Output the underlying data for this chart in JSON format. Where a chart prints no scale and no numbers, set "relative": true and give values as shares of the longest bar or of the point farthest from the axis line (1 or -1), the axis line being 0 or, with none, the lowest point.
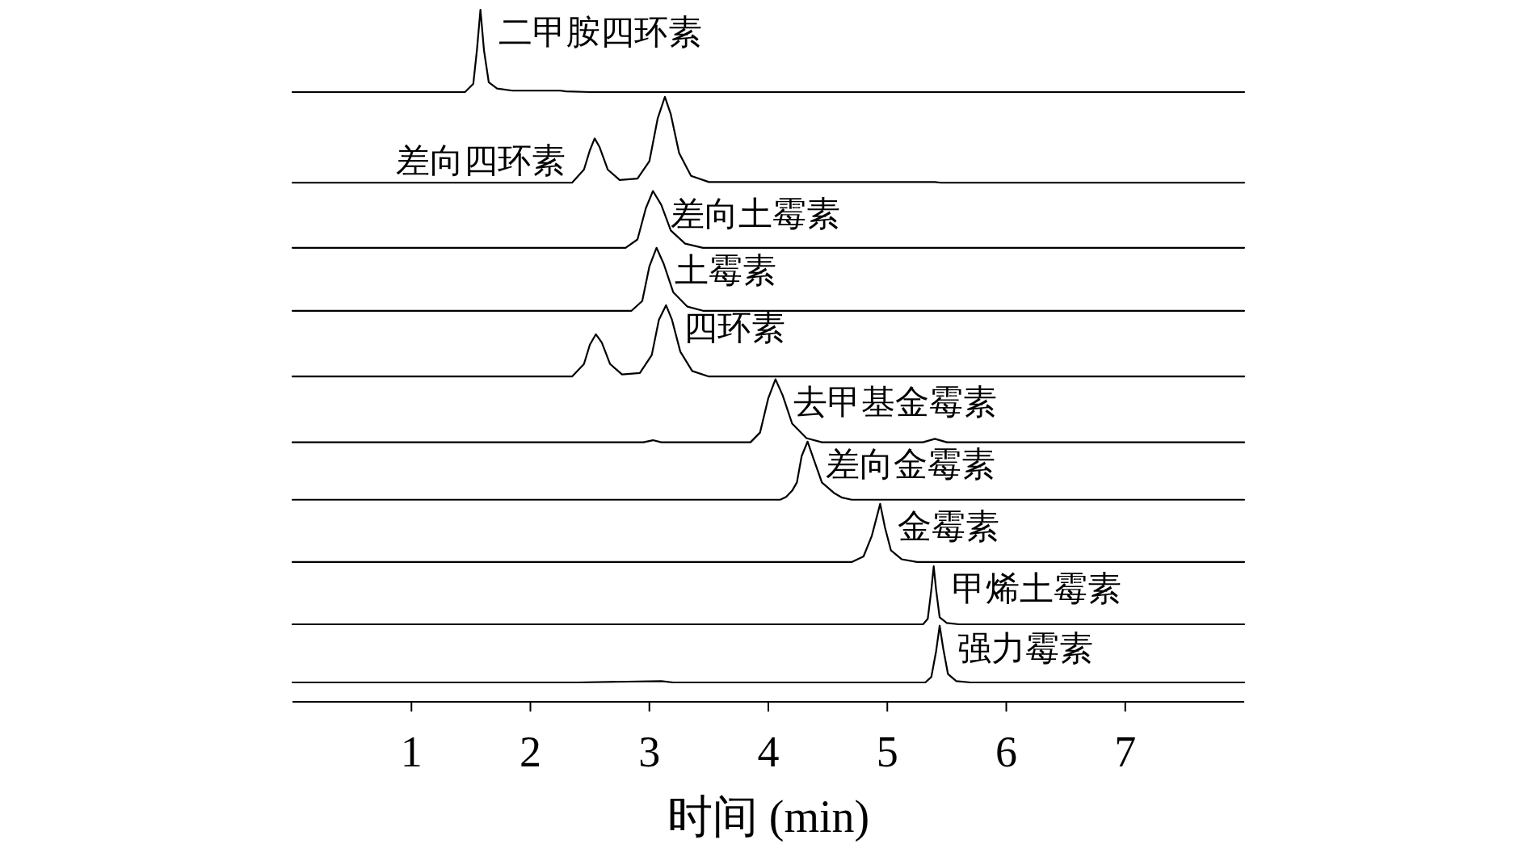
{
  "chart_data": {
    "type": "line",
    "relative": true,
    "xlim": [
      0,
      8
    ],
    "xticks": [
      1,
      2,
      3,
      4,
      5,
      6,
      7
    ],
    "xlabel": "时间 (min)",
    "series": [
      {
        "color": "#000000",
        "x": [
          0,
          1.45,
          1.52,
          1.55,
          1.58,
          1.61,
          1.65,
          1.72,
          1.85,
          2.25,
          2.3,
          2.5,
          8
        ],
        "values": [
          0.881,
          0.881,
          0.893,
          0.941,
          1.0,
          0.941,
          0.895,
          0.886,
          0.883,
          0.883,
          0.882,
          0.881,
          0.881
        ]
      },
      {
        "color": "#000000",
        "x": [
          0,
          2.35,
          2.45,
          2.5,
          2.54,
          2.58,
          2.65,
          2.75,
          2.9,
          3.0,
          3.07,
          3.13,
          3.18,
          3.25,
          3.35,
          3.5,
          5.4,
          5.45,
          8
        ],
        "values": [
          0.75,
          0.75,
          0.769,
          0.797,
          0.814,
          0.802,
          0.769,
          0.754,
          0.756,
          0.781,
          0.843,
          0.874,
          0.849,
          0.793,
          0.76,
          0.751,
          0.751,
          0.75,
          0.75
        ]
      },
      {
        "color": "#000000",
        "x": [
          0,
          2.8,
          2.9,
          2.97,
          3.03,
          3.1,
          3.18,
          3.3,
          3.45,
          8
        ],
        "values": [
          0.656,
          0.656,
          0.668,
          0.713,
          0.738,
          0.718,
          0.681,
          0.662,
          0.656,
          0.656
        ]
      },
      {
        "color": "#000000",
        "x": [
          0,
          2.85,
          2.94,
          3.0,
          3.06,
          3.12,
          3.2,
          3.32,
          3.45,
          8
        ],
        "values": [
          0.565,
          0.565,
          0.579,
          0.629,
          0.656,
          0.633,
          0.592,
          0.571,
          0.565,
          0.565
        ]
      },
      {
        "color": "#000000",
        "x": [
          0,
          2.35,
          2.45,
          2.5,
          2.55,
          2.6,
          2.67,
          2.77,
          2.92,
          3.02,
          3.08,
          3.14,
          3.19,
          3.26,
          3.36,
          3.5,
          8
        ],
        "values": [
          0.47,
          0.47,
          0.488,
          0.516,
          0.531,
          0.519,
          0.488,
          0.473,
          0.475,
          0.501,
          0.552,
          0.573,
          0.552,
          0.506,
          0.478,
          0.47,
          0.47
        ]
      },
      {
        "color": "#000000",
        "x": [
          0,
          2.95,
          3.03,
          3.1,
          3.85,
          3.93,
          4.0,
          4.06,
          4.12,
          4.2,
          4.32,
          4.45,
          5.3,
          5.4,
          5.5,
          8
        ],
        "values": [
          0.375,
          0.375,
          0.378,
          0.375,
          0.375,
          0.389,
          0.439,
          0.466,
          0.443,
          0.402,
          0.381,
          0.375,
          0.375,
          0.38,
          0.375,
          0.375
        ]
      },
      {
        "color": "#000000",
        "x": [
          0,
          4.1,
          4.15,
          4.2,
          4.24,
          4.28,
          4.33,
          4.38,
          4.45,
          4.55,
          4.62,
          4.7,
          8
        ],
        "values": [
          0.292,
          0.292,
          0.296,
          0.305,
          0.317,
          0.355,
          0.376,
          0.351,
          0.317,
          0.302,
          0.295,
          0.292,
          0.292
        ]
      },
      {
        "color": "#000000",
        "x": [
          0,
          4.7,
          4.8,
          4.87,
          4.94,
          4.98,
          5.03,
          5.12,
          5.25,
          8
        ],
        "values": [
          0.202,
          0.202,
          0.21,
          0.24,
          0.286,
          0.252,
          0.219,
          0.206,
          0.202,
          0.202
        ]
      },
      {
        "color": "#000000",
        "x": [
          0,
          5.3,
          5.34,
          5.37,
          5.39,
          5.41,
          5.44,
          5.5,
          5.6,
          8
        ],
        "values": [
          0.112,
          0.112,
          0.12,
          0.162,
          0.196,
          0.162,
          0.122,
          0.114,
          0.112,
          0.112
        ]
      },
      {
        "color": "#000000",
        "x": [
          0,
          2.4,
          3.1,
          3.2,
          5.32,
          5.37,
          5.41,
          5.44,
          5.47,
          5.51,
          5.58,
          5.7,
          8
        ],
        "values": [
          0.028,
          0.028,
          0.03,
          0.028,
          0.028,
          0.036,
          0.073,
          0.11,
          0.077,
          0.04,
          0.03,
          0.028,
          0.028
        ]
      }
    ],
    "annotations": [
      {
        "text": "二甲胺四环素",
        "x": 1.58,
        "y": 1.0
      },
      {
        "text": "差向四环素",
        "x": 2.54,
        "y": 0.814
      },
      {
        "text": "差向土霉素",
        "x": 3.03,
        "y": 0.738
      },
      {
        "text": "土霉素",
        "x": 3.06,
        "y": 0.656
      },
      {
        "text": "四环素",
        "x": 3.14,
        "y": 0.573
      },
      {
        "text": "去甲基金霉素",
        "x": 4.06,
        "y": 0.466
      },
      {
        "text": "差向金霉素",
        "x": 4.33,
        "y": 0.376
      },
      {
        "text": "金霉素",
        "x": 4.94,
        "y": 0.286
      },
      {
        "text": "甲烯土霉素",
        "x": 5.39,
        "y": 0.196
      },
      {
        "text": "强力霉素",
        "x": 5.44,
        "y": 0.11
      }
    ]
  }
}
